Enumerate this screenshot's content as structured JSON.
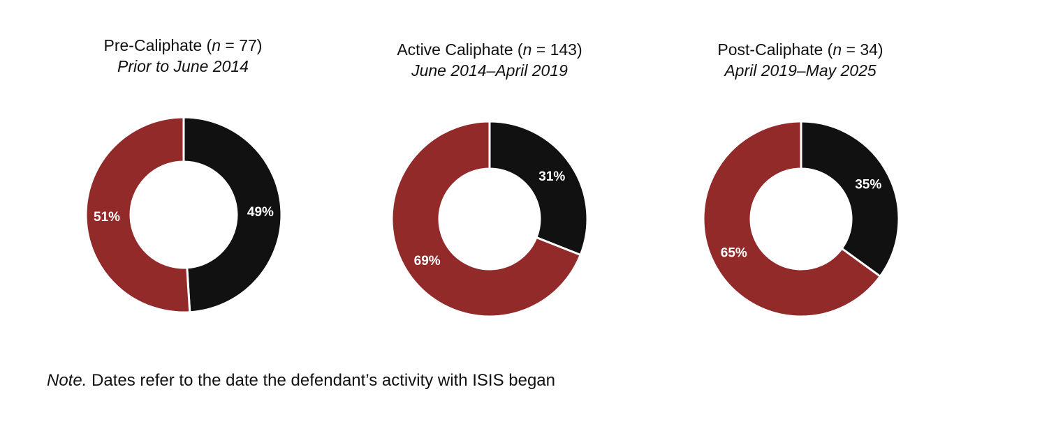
{
  "colors": {
    "dark": "#111111",
    "red": "#922a2a",
    "separator": "#ffffff"
  },
  "chart_data": [
    {
      "type": "pie",
      "title_prefix": "Pre-Caliphate (",
      "title_n_symbol": "n",
      "title_suffix": " = 77)",
      "subtitle": "Prior to June 2014",
      "slices": [
        {
          "label": "49%",
          "value": 49,
          "color": "#111111"
        },
        {
          "label": "51%",
          "value": 51,
          "color": "#922a2a"
        }
      ]
    },
    {
      "type": "pie",
      "title_prefix": "Active Caliphate (",
      "title_n_symbol": "n",
      "title_suffix": " = 143)",
      "subtitle": "June 2014–April 2019",
      "slices": [
        {
          "label": "31%",
          "value": 31,
          "color": "#111111"
        },
        {
          "label": "69%",
          "value": 69,
          "color": "#922a2a"
        }
      ]
    },
    {
      "type": "pie",
      "title_prefix": "Post-Caliphate (",
      "title_n_symbol": "n",
      "title_suffix": " = 34)",
      "subtitle": "April 2019–May 2025",
      "slices": [
        {
          "label": "35%",
          "value": 35,
          "color": "#111111"
        },
        {
          "label": "65%",
          "value": 65,
          "color": "#922a2a"
        }
      ]
    }
  ],
  "note": {
    "lead": "Note.",
    "text": " Dates refer to the date the defendant’s activity with ISIS began"
  }
}
